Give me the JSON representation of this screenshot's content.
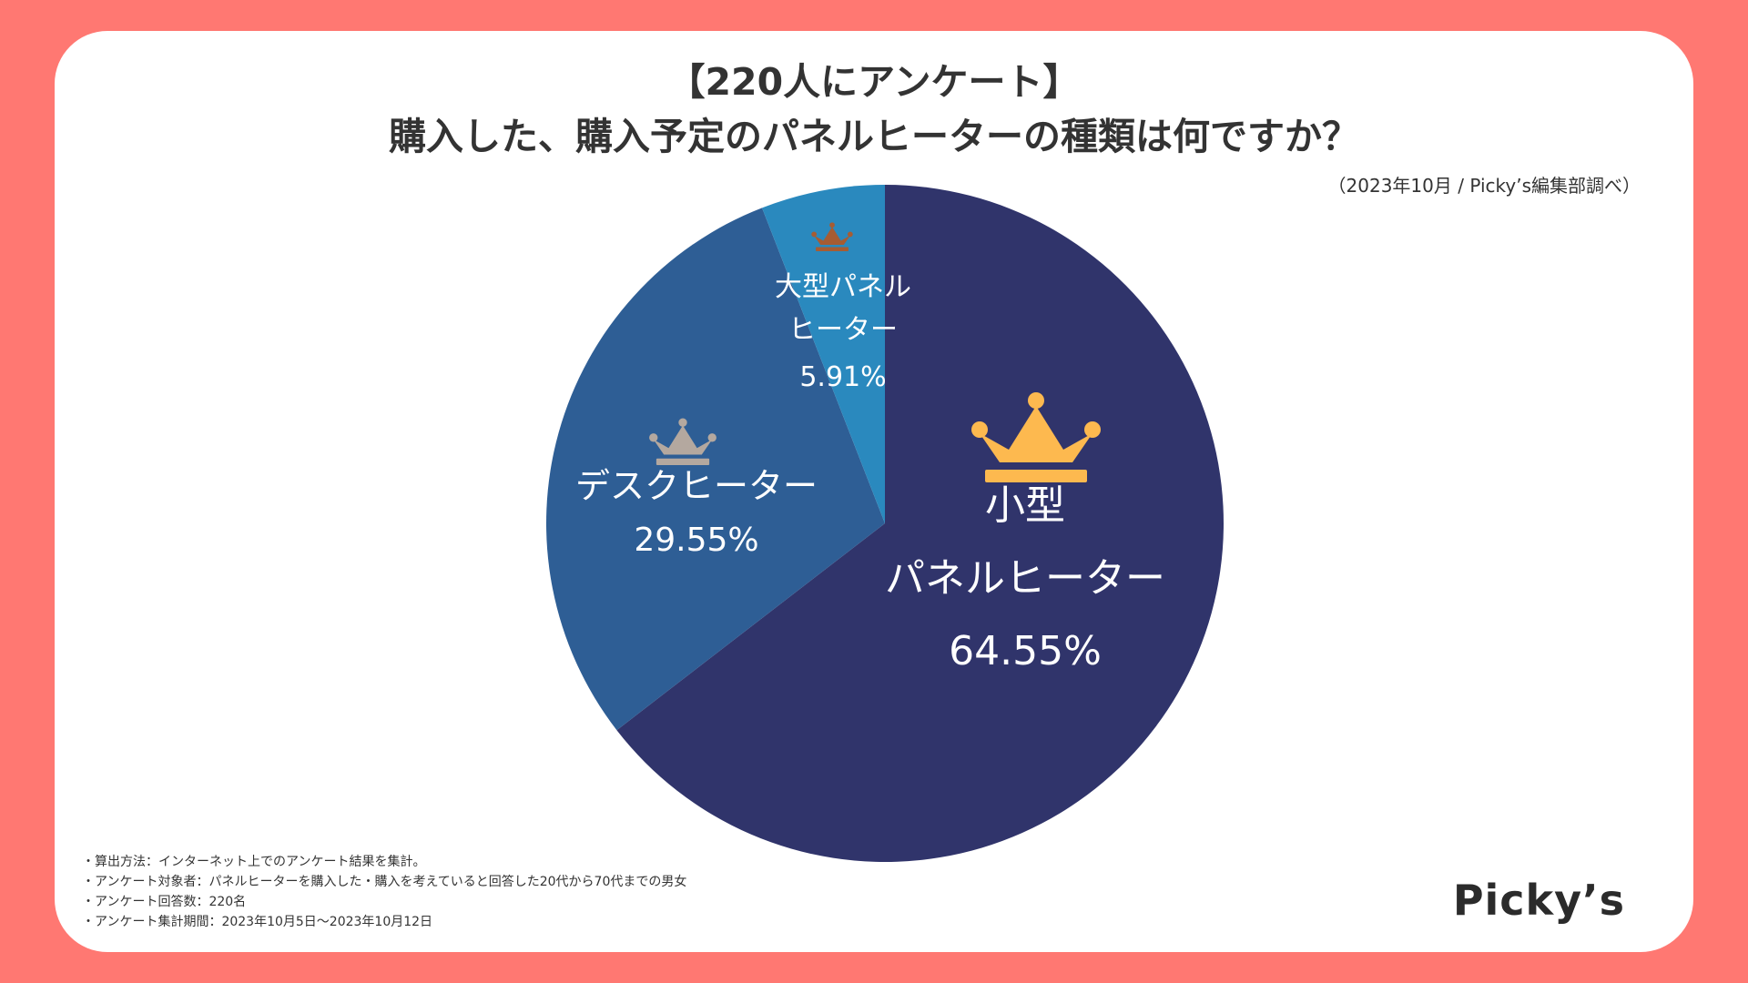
{
  "title_line1": "【220人にアンケート】",
  "title_line2": "購入した、購入予定のパネルヒーターの種類は何ですか？",
  "source": "（2023年10月 / Picky’s編集部調べ）",
  "notes": [
    "・算出方法：インターネット上でのアンケート結果を集計。",
    "・アンケート対象者：パネルヒーターを購入した・購入を考えていると回答した20代から70代までの男女",
    "・アンケート回答数：220名",
    "・アンケート集計期間：2023年10月5日〜2023年10月12日"
  ],
  "brand": "Picky’s",
  "chart_data": {
    "type": "pie",
    "title": "購入した、購入予定のパネルヒーターの種類は何ですか？",
    "slices": [
      {
        "label_lines": [
          "小型",
          "パネルヒーター"
        ],
        "value": 64.55,
        "value_label": "64.55%",
        "color": "#30346B",
        "crown_color": "#FDB94F",
        "rank": 1
      },
      {
        "label_lines": [
          "デスクヒーター"
        ],
        "value": 29.55,
        "value_label": "29.55%",
        "color": "#2E5E95",
        "crown_color": "#B4A89F",
        "rank": 2
      },
      {
        "label_lines": [
          "大型パネル",
          "ヒーター"
        ],
        "value": 5.91,
        "value_label": "5.91%",
        "color": "#2A89BE",
        "crown_color": "#A65C33",
        "rank": 3
      }
    ]
  }
}
